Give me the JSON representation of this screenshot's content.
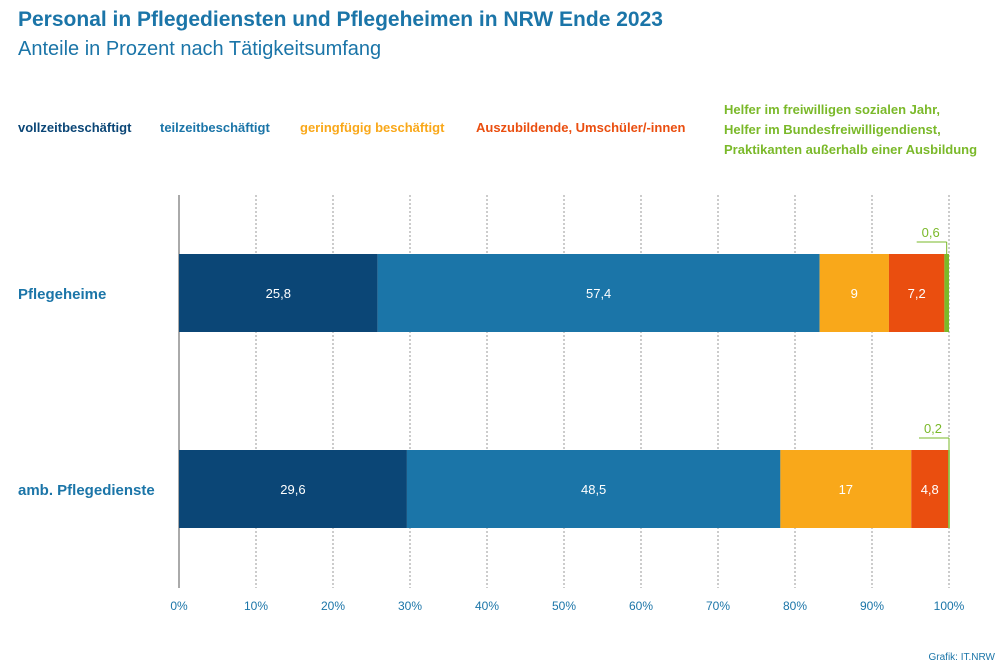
{
  "header": {
    "title": "Personal in Pflegediensten und Pflegeheimen in NRW Ende 2023",
    "subtitle": "Anteile in Prozent nach Tätigkeitsumfang"
  },
  "legend": [
    {
      "text": "vollzeitbeschäftigt",
      "color": "#0b4676"
    },
    {
      "text": "teilzeitbeschäftigt",
      "color": "#1b75a8"
    },
    {
      "text": "geringfügig beschäftigt",
      "color": "#f9a81a"
    },
    {
      "text": "Auszubildende, Umschüler/-innen",
      "color": "#ea4e0f"
    },
    {
      "lines": [
        "Helfer im freiwilligen sozialen Jahr,",
        "Helfer im Bundesfreiwilligendienst,",
        "Praktikanten außerhalb einer Ausbildung"
      ],
      "color": "#7ab929"
    }
  ],
  "source": "Grafik: IT.NRW",
  "chart_data": {
    "type": "bar",
    "orientation": "horizontal",
    "stacked": true,
    "categories": [
      "Pflegeheime",
      "amb. Pflegedienste"
    ],
    "series": [
      {
        "name": "vollzeitbeschäftigt",
        "color": "#0b4676",
        "values": [
          25.8,
          29.6
        ],
        "labels": [
          "25,8",
          "29,6"
        ]
      },
      {
        "name": "teilzeitbeschäftigt",
        "color": "#1b75a8",
        "values": [
          57.4,
          48.5
        ],
        "labels": [
          "57,4",
          "48,5"
        ]
      },
      {
        "name": "geringfügig beschäftigt",
        "color": "#f9a81a",
        "values": [
          9,
          17
        ],
        "labels": [
          "9",
          "17"
        ]
      },
      {
        "name": "Auszubildende, Umschüler/-innen",
        "color": "#ea4e0f",
        "values": [
          7.2,
          4.8
        ],
        "labels": [
          "7,2",
          "4,8"
        ]
      },
      {
        "name": "Helfer im freiwilligen sozialen Jahr, Helfer im Bundesfreiwilligendienst, Praktikanten außerhalb einer Ausbildung",
        "color": "#7ab929",
        "values": [
          0.6,
          0.2
        ],
        "labels": [
          "0,6",
          "0,2"
        ]
      }
    ],
    "xlim": [
      0,
      100
    ],
    "xticks": [
      0,
      10,
      20,
      30,
      40,
      50,
      60,
      70,
      80,
      90,
      100
    ],
    "xtick_labels": [
      "0%",
      "10%",
      "20%",
      "30%",
      "40%",
      "50%",
      "60%",
      "70%",
      "80%",
      "90%",
      "100%"
    ],
    "grid": "vertical dashed",
    "legend_position": "top"
  }
}
